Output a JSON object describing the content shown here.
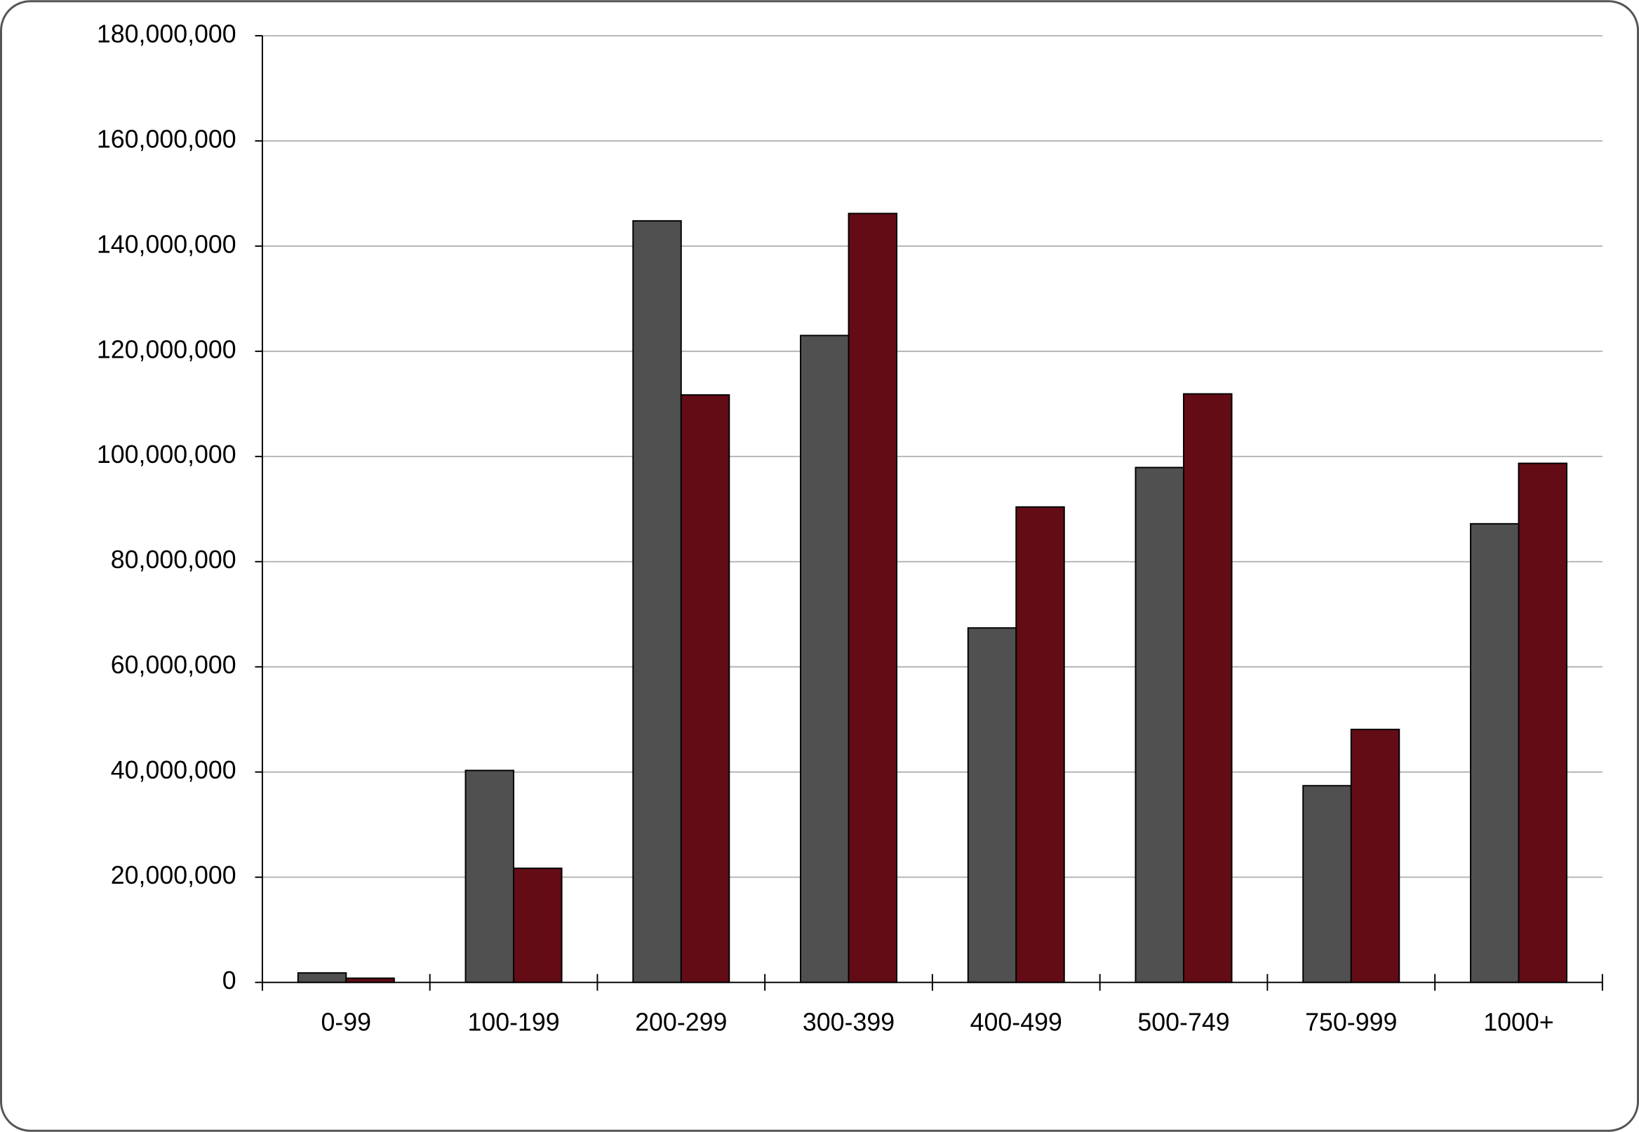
{
  "chart_data": {
    "type": "bar",
    "categories": [
      "0-99",
      "100-199",
      "200-299",
      "300-399",
      "400-499",
      "500-749",
      "750-999",
      "1000+"
    ],
    "series": [
      {
        "color": "#505050",
        "values": [
          1800000,
          40300000,
          144800000,
          123000000,
          67400000,
          97900000,
          37400000,
          87200000
        ]
      },
      {
        "color": "#630c16",
        "values": [
          800000,
          21700000,
          111700000,
          146200000,
          90400000,
          111900000,
          48100000,
          98700000
        ]
      }
    ],
    "ylim": [
      0,
      180000000
    ],
    "yticks": [
      0,
      {
        "value": 20000000,
        "label": "20,000,000"
      },
      {
        "value": 40000000,
        "label": "40,000,000"
      },
      {
        "value": 60000000,
        "label": "60,000,000"
      },
      {
        "value": 80000000,
        "label": "80,000,000"
      },
      {
        "value": 100000000,
        "label": "100,000,000"
      },
      {
        "value": 120000000,
        "label": "120,000,000"
      },
      {
        "value": 140000000,
        "label": "140,000,000"
      },
      {
        "value": 160000000,
        "label": "160,000,000"
      },
      {
        "value": 180000000,
        "label": "180,000,000"
      }
    ],
    "grid": true
  }
}
